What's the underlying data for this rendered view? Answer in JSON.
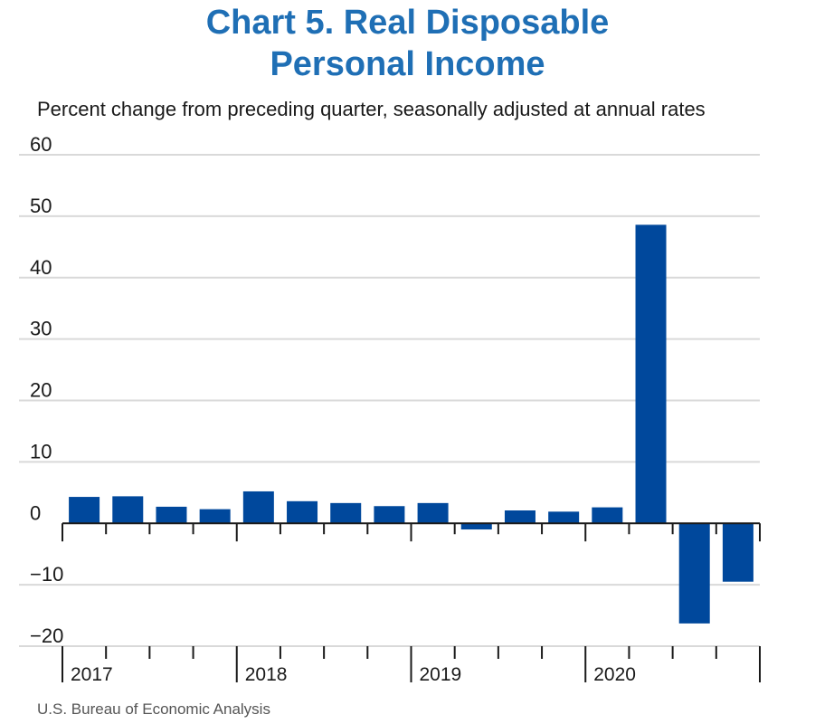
{
  "title_line1": "Chart 5. Real Disposable",
  "title_line2": "Personal Income",
  "subtitle": "Percent change from preceding quarter, seasonally adjusted at annual rates",
  "source": "U.S. Bureau of Economic Analysis",
  "colors": {
    "bar": "#00489c",
    "title": "#1f6fb5",
    "grid": "#d9d9d9",
    "axis": "#1a1a1a"
  },
  "chart_data": {
    "type": "bar",
    "title": "Chart 5. Real Disposable Personal Income",
    "subtitle": "Percent change from preceding quarter, seasonally adjusted at annual rates",
    "categories": [
      "2017 Q1",
      "2017 Q2",
      "2017 Q3",
      "2017 Q4",
      "2018 Q1",
      "2018 Q2",
      "2018 Q3",
      "2018 Q4",
      "2019 Q1",
      "2019 Q2",
      "2019 Q3",
      "2019 Q4",
      "2020 Q1",
      "2020 Q2",
      "2020 Q3",
      "2020 Q4"
    ],
    "values": [
      4.3,
      4.4,
      2.7,
      2.3,
      5.2,
      3.6,
      3.3,
      2.8,
      3.3,
      -1.0,
      2.1,
      1.9,
      2.6,
      48.6,
      -16.3,
      -9.5
    ],
    "year_labels": [
      "2017",
      "2018",
      "2019",
      "2020"
    ],
    "yticks": [
      60,
      50,
      40,
      30,
      20,
      10,
      0,
      -10,
      -20
    ],
    "ytick_labels": [
      "60",
      "50",
      "40",
      "30",
      "20",
      "10",
      "0",
      "−10",
      "−20"
    ],
    "ylim": [
      -20,
      60
    ],
    "grid": true,
    "xlabel": "",
    "ylabel": ""
  }
}
